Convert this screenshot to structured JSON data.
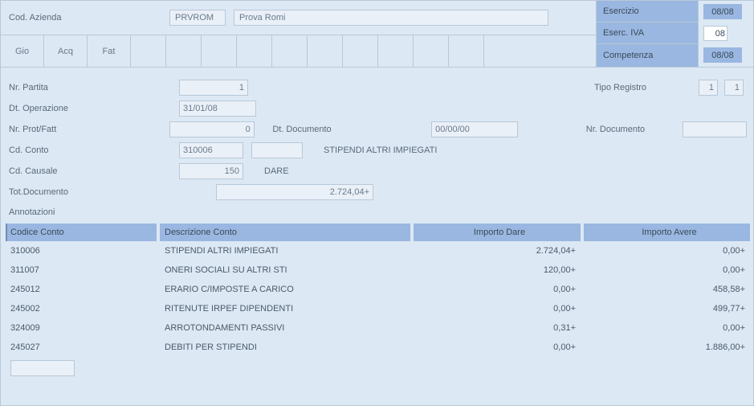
{
  "header": {
    "cod_azienda_label": "Cod. Azienda",
    "cod_azienda_value": "PRVROM",
    "azienda_name": "Prova Romi"
  },
  "top_right": {
    "rows": [
      {
        "label": "Esercizio",
        "value": "08/08",
        "white": false
      },
      {
        "label": "Eserc. IVA",
        "value": "08",
        "white": true
      },
      {
        "label": "Competenza",
        "value": "08/08",
        "white": false
      }
    ]
  },
  "tabs": [
    "Gio",
    "Acq",
    "Fat",
    "",
    "",
    "",
    "",
    "",
    "",
    "",
    "",
    "",
    ""
  ],
  "form": {
    "nr_partita_label": "Nr. Partita",
    "nr_partita": "1",
    "tipo_registro_label": "Tipo Registro",
    "tipo_registro_1": "1",
    "tipo_registro_2": "1",
    "dt_operazione_label": "Dt. Operazione",
    "dt_operazione": "31/01/08",
    "nr_prot_fatt_label": "Nr. Prot/Fatt",
    "nr_prot_fatt": "0",
    "dt_documento_label": "Dt. Documento",
    "dt_documento": "00/00/00",
    "nr_documento_label": "Nr. Documento",
    "nr_documento": "",
    "cd_conto_label": "Cd. Conto",
    "cd_conto": "310006",
    "cd_conto_extra": "",
    "cd_conto_desc": "STIPENDI ALTRI IMPIEGATI",
    "cd_causale_label": "Cd. Causale",
    "cd_causale": "150",
    "cd_causale_desc": "DARE",
    "tot_documento_label": "Tot.Documento",
    "tot_documento": "2.724,04+",
    "annotazioni_label": "Annotazioni"
  },
  "grid": {
    "columns": [
      "Codice Conto",
      "Descrizione Conto",
      "Importo Dare",
      "Importo Avere"
    ],
    "rows": [
      {
        "codice": "310006",
        "descr": "STIPENDI ALTRI IMPIEGATI",
        "dare": "2.724,04+",
        "avere": "0,00+"
      },
      {
        "codice": "311007",
        "descr": "ONERI SOCIALI SU ALTRI STI",
        "dare": "120,00+",
        "avere": "0,00+"
      },
      {
        "codice": "245012",
        "descr": "ERARIO C/IMPOSTE A CARICO",
        "dare": "0,00+",
        "avere": "458,58+"
      },
      {
        "codice": "245002",
        "descr": "RITENUTE IRPEF DIPENDENTI",
        "dare": "0,00+",
        "avere": "499,77+"
      },
      {
        "codice": "324009",
        "descr": "ARROTONDAMENTI PASSIVI",
        "dare": "0,31+",
        "avere": "0,00+"
      },
      {
        "codice": "245027",
        "descr": "DEBITI PER STIPENDI",
        "dare": "0,00+",
        "avere": "1.886,00+"
      }
    ]
  },
  "colors": {
    "page_bg": "#dce8f4",
    "field_bg": "#eaf0f8",
    "accent": "#99b7e0",
    "border": "#b8c8d8",
    "text": "#5a6a7a"
  }
}
